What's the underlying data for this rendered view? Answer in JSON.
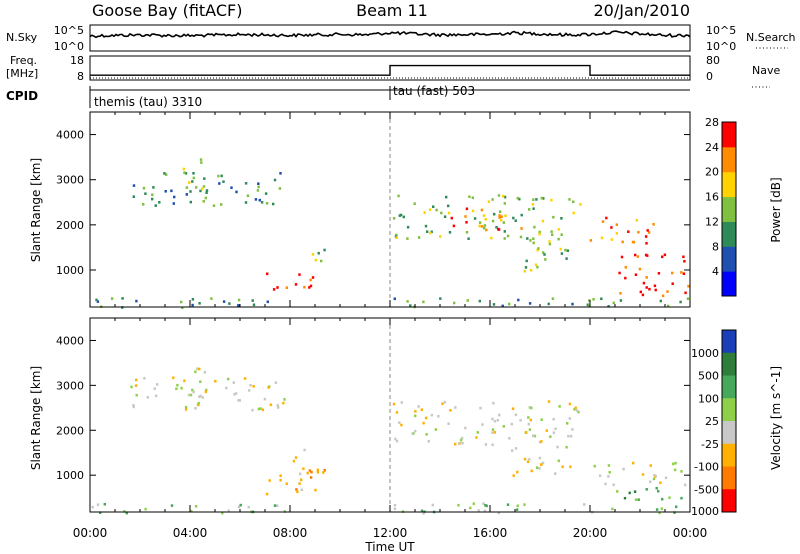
{
  "header": {
    "station": "Goose Bay (fitACF)",
    "beam": "Beam 11",
    "date": "20/Jan/2010"
  },
  "strips": {
    "nsky_label": "N.Sky",
    "nsky_ticks": [
      "10^5",
      "10^0"
    ],
    "nsearch_label": "N.Search",
    "nsearch_ticks": [
      "10^5",
      "10^0"
    ],
    "freq_label_1": "Freq.",
    "freq_label_2": "[MHz]",
    "freq_ticks": [
      "18",
      "8"
    ],
    "nave_label": "Nave",
    "nave_ticks": [
      "80",
      "0"
    ],
    "cpid_label": "CPID",
    "cpid_entries": [
      {
        "name": "themis (tau) 3310",
        "start_hour": 0
      },
      {
        "name": "tau (fast) 503",
        "start_hour": 12
      }
    ]
  },
  "x_axis": {
    "label": "Time UT",
    "ticks": [
      "00:00",
      "04:00",
      "08:00",
      "12:00",
      "16:00",
      "20:00",
      "00:00"
    ],
    "range_hours": [
      0,
      24
    ]
  },
  "chart_data": [
    {
      "type": "line",
      "name": "N.Sky / N.Search strip",
      "x_hours": [
        0,
        1,
        2,
        3,
        4,
        5,
        6,
        7,
        8,
        9,
        10,
        11,
        12,
        13,
        14,
        15,
        16,
        17,
        18,
        19,
        20,
        21,
        22,
        23,
        24
      ],
      "nsky_level": [
        0.58,
        0.6,
        0.62,
        0.6,
        0.59,
        0.61,
        0.63,
        0.62,
        0.6,
        0.62,
        0.64,
        0.62,
        0.7,
        0.66,
        0.62,
        0.63,
        0.64,
        0.7,
        0.66,
        0.62,
        0.64,
        0.72,
        0.66,
        0.6,
        0.6
      ]
    },
    {
      "type": "line",
      "name": "Freq./Nave strip",
      "freq_mhz": [
        {
          "from_hour": 0,
          "to_hour": 12,
          "value": 10
        },
        {
          "from_hour": 12,
          "to_hour": 20,
          "value": 14
        },
        {
          "from_hour": 20,
          "to_hour": 24,
          "value": 10
        }
      ],
      "freq_range": [
        8,
        18
      ],
      "nave_range": [
        0,
        80
      ]
    },
    {
      "type": "heatmap",
      "title": "Power",
      "xlabel": "Time UT",
      "ylabel": "Slant Range [km]",
      "y_ticks": [
        1000,
        2000,
        3000,
        4000
      ],
      "ylim": [
        180,
        4500
      ],
      "xlim_hours": [
        0,
        24
      ],
      "colorbar_label": "Power [dB]",
      "colorbar_ticks": [
        "4",
        "8",
        "12",
        "16",
        "20",
        "24",
        "28"
      ],
      "colorbar_colors": [
        "#0000ff",
        "#1f4fb0",
        "#2e8b57",
        "#80c040",
        "#ffd200",
        "#ff8c00",
        "#ff0000"
      ],
      "regions": [
        {
          "h0": 0.0,
          "h1": 8.2,
          "r0": 180,
          "r1": 400,
          "level": 2
        },
        {
          "h0": 1.6,
          "h1": 7.8,
          "r0": 2450,
          "r1": 3200,
          "level": 2
        },
        {
          "h0": 3.6,
          "h1": 4.6,
          "r0": 2700,
          "r1": 3550,
          "level": 3
        },
        {
          "h0": 7.0,
          "h1": 9.0,
          "r0": 500,
          "r1": 1000,
          "level": 6
        },
        {
          "h0": 8.8,
          "h1": 9.4,
          "r0": 900,
          "r1": 1600,
          "level": 3
        },
        {
          "h0": 12.0,
          "h1": 24.0,
          "r0": 180,
          "r1": 400,
          "level": 2
        },
        {
          "h0": 12.1,
          "h1": 19.6,
          "r0": 1700,
          "r1": 2700,
          "level": 3
        },
        {
          "h0": 14.4,
          "h1": 17.4,
          "r0": 1900,
          "r1": 2400,
          "level": 5
        },
        {
          "h0": 16.8,
          "h1": 19.2,
          "r0": 1000,
          "r1": 1800,
          "level": 3
        },
        {
          "h0": 19.8,
          "h1": 22.6,
          "r0": 1600,
          "r1": 2200,
          "level": 5
        },
        {
          "h0": 21.0,
          "h1": 24.0,
          "r0": 450,
          "r1": 1400,
          "level": 6
        }
      ]
    },
    {
      "type": "heatmap",
      "title": "Velocity",
      "xlabel": "Time UT",
      "ylabel": "Slant Range [km]",
      "y_ticks": [
        1000,
        2000,
        3000,
        4000
      ],
      "ylim": [
        180,
        4500
      ],
      "xlim_hours": [
        0,
        24
      ],
      "colorbar_label": "Velocity [m s^-1]",
      "colorbar_ticks": [
        "1000",
        "500",
        "100",
        "25",
        "-25",
        "-100",
        "-500",
        "-1000"
      ],
      "colorbar_colors": [
        "#1a3fb8",
        "#2e7d3a",
        "#45a85a",
        "#8fd04a",
        "#c8c8c8",
        "#ffb000",
        "#ff7a00",
        "#ff0000"
      ],
      "regions": [
        {
          "h0": 0.0,
          "h1": 8.2,
          "r0": 180,
          "r1": 400,
          "level": 3
        },
        {
          "h0": 1.6,
          "h1": 7.8,
          "r0": 2450,
          "r1": 3200,
          "level": 4
        },
        {
          "h0": 3.6,
          "h1": 4.6,
          "r0": 2700,
          "r1": 3550,
          "level": 4
        },
        {
          "h0": 7.0,
          "h1": 9.0,
          "r0": 500,
          "r1": 1100,
          "level": 5
        },
        {
          "h0": 8.0,
          "h1": 9.4,
          "r0": 900,
          "r1": 1600,
          "level": 5
        },
        {
          "h0": 12.0,
          "h1": 24.0,
          "r0": 180,
          "r1": 400,
          "level": 3
        },
        {
          "h0": 12.1,
          "h1": 19.6,
          "r0": 1700,
          "r1": 2700,
          "level": 4
        },
        {
          "h0": 16.8,
          "h1": 19.2,
          "r0": 1000,
          "r1": 1800,
          "level": 4
        },
        {
          "h0": 19.8,
          "h1": 24.0,
          "r0": 800,
          "r1": 1300,
          "level": 4
        },
        {
          "h0": 21.0,
          "h1": 24.0,
          "r0": 450,
          "r1": 800,
          "level": 2
        }
      ]
    }
  ]
}
